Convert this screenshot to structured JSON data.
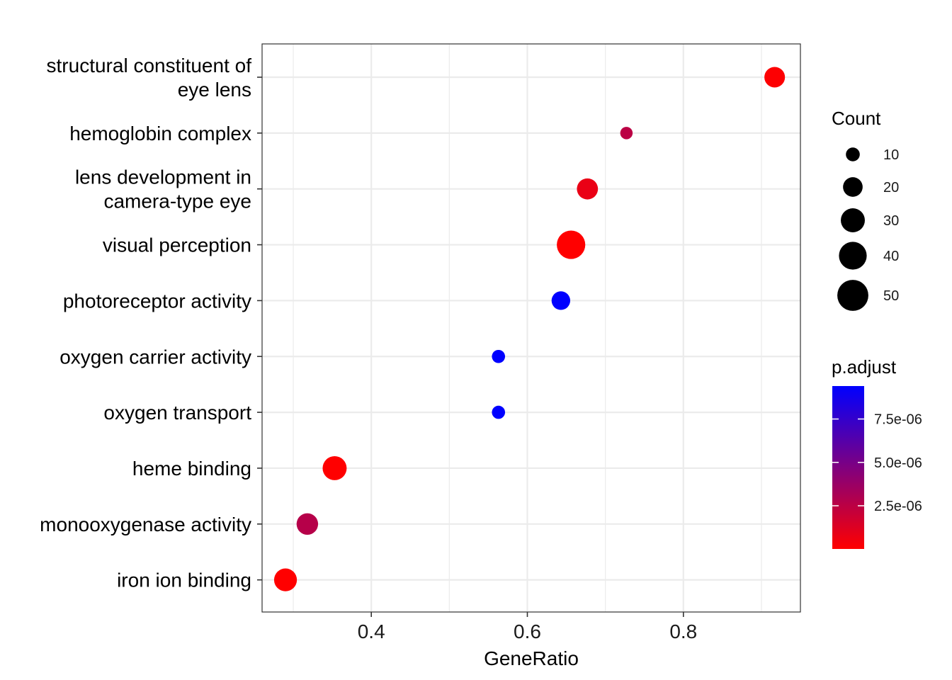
{
  "chart_data": {
    "type": "scatter",
    "title": "",
    "xlabel": "GeneRatio",
    "ylabel": "",
    "xlim": [
      0.26,
      0.95
    ],
    "xticks": [
      0.4,
      0.6,
      0.8
    ],
    "xtick_labels": [
      "0.4",
      "0.6",
      "0.8"
    ],
    "grid": true,
    "categories": [
      "structural constituent of eye lens",
      "hemoglobin complex",
      "lens development in camera-type eye",
      "visual perception",
      "photoreceptor activity",
      "oxygen carrier activity",
      "oxygen transport",
      "heme binding",
      "monooxygenase activity",
      "iron ion binding"
    ],
    "category_label_lines": [
      [
        "structural constituent of",
        "eye lens"
      ],
      [
        "hemoglobin complex"
      ],
      [
        "lens development in",
        "camera-type eye"
      ],
      [
        "visual perception"
      ],
      [
        "photoreceptor activity"
      ],
      [
        "oxygen carrier activity"
      ],
      [
        "oxygen transport"
      ],
      [
        "heme binding"
      ],
      [
        "monooxygenase activity"
      ],
      [
        "iron ion binding"
      ]
    ],
    "points": [
      {
        "term": "structural constituent of eye lens",
        "gene_ratio": 0.917,
        "count": 22,
        "p_adjust": 1e-07
      },
      {
        "term": "hemoglobin complex",
        "gene_ratio": 0.727,
        "count": 8,
        "p_adjust": 2.5e-06
      },
      {
        "term": "lens development in camera-type eye",
        "gene_ratio": 0.677,
        "count": 23,
        "p_adjust": 8e-07
      },
      {
        "term": "visual perception",
        "gene_ratio": 0.656,
        "count": 42,
        "p_adjust": 1e-08
      },
      {
        "term": "photoreceptor activity",
        "gene_ratio": 0.643,
        "count": 18,
        "p_adjust": 9.4e-06
      },
      {
        "term": "oxygen carrier activity",
        "gene_ratio": 0.563,
        "count": 9,
        "p_adjust": 9.4e-06
      },
      {
        "term": "oxygen transport",
        "gene_ratio": 0.563,
        "count": 9,
        "p_adjust": 9.4e-06
      },
      {
        "term": "heme binding",
        "gene_ratio": 0.353,
        "count": 30,
        "p_adjust": 1e-08
      },
      {
        "term": "monooxygenase activity",
        "gene_ratio": 0.318,
        "count": 24,
        "p_adjust": 2.7e-06
      },
      {
        "term": "iron ion binding",
        "gene_ratio": 0.29,
        "count": 27,
        "p_adjust": 1e-08
      }
    ],
    "size_legend": {
      "title": "Count",
      "values": [
        10,
        20,
        30,
        40,
        50
      ],
      "labels": [
        "10",
        "20",
        "30",
        "40",
        "50"
      ]
    },
    "color_legend": {
      "title": "p.adjust",
      "low_color": "#FF0000",
      "high_color": "#0000FF",
      "range": [
        1e-08,
        9.4e-06
      ],
      "ticks": [
        2.5e-06,
        5e-06,
        7.5e-06
      ],
      "tick_labels": [
        "2.5e-06",
        "5.0e-06",
        "7.5e-06"
      ]
    }
  }
}
